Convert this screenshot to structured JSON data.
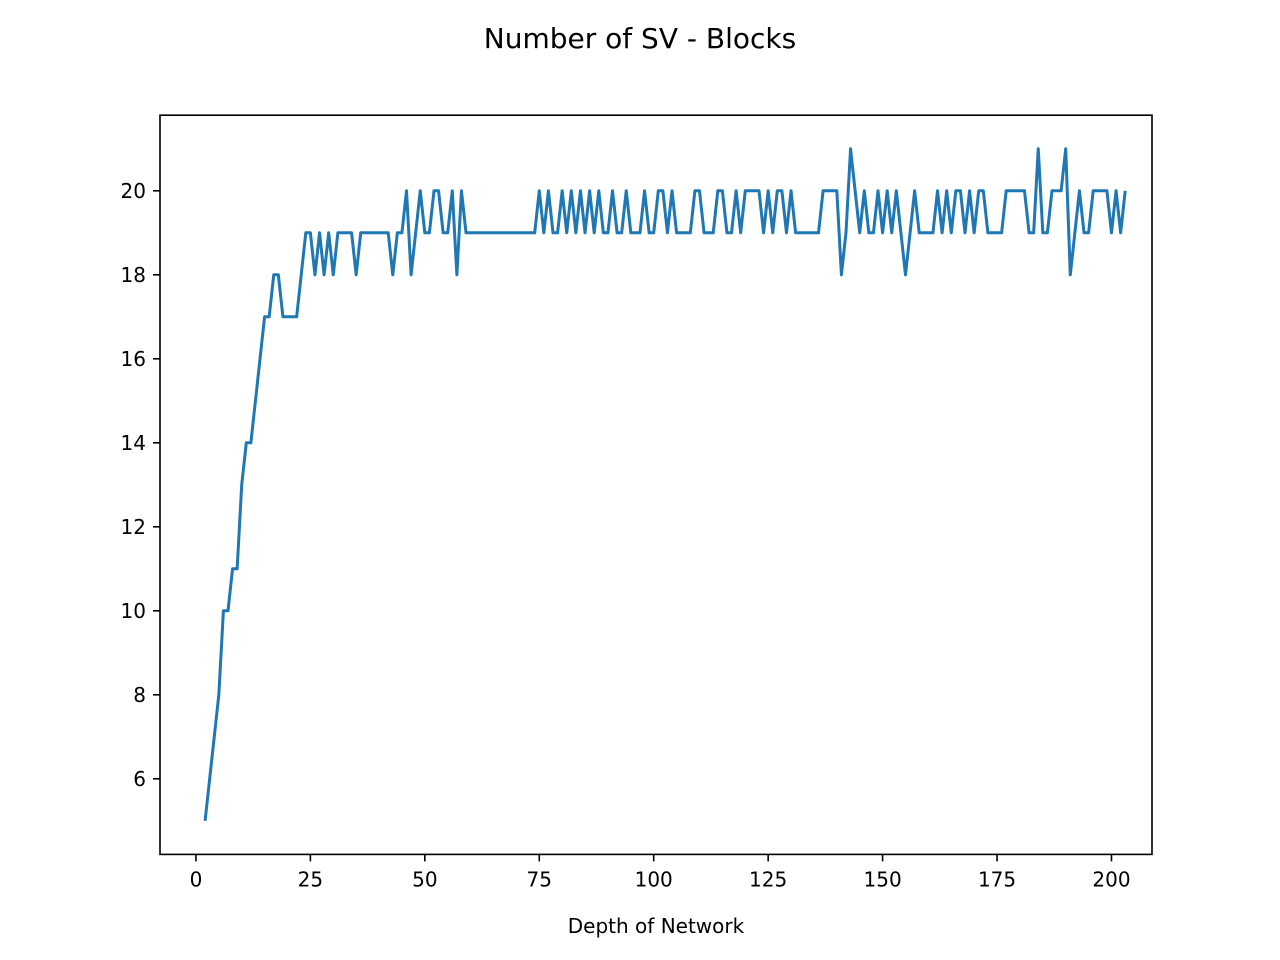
{
  "chart_data": {
    "type": "line",
    "title": "Number of SV - Blocks",
    "xlabel": "Depth of Network",
    "ylabel": "",
    "xlim": [
      -7.85,
      208.85
    ],
    "ylim": [
      4.2,
      21.8
    ],
    "xticks": [
      0,
      25,
      50,
      75,
      100,
      125,
      150,
      175,
      200
    ],
    "yticks": [
      6,
      8,
      10,
      12,
      14,
      16,
      18,
      20
    ],
    "grid": false,
    "line_color": "#1f77b4",
    "series": [
      {
        "x_start": 2,
        "x_step": 1,
        "values": [
          5,
          6,
          7,
          8,
          10,
          10,
          11,
          11,
          13,
          14,
          14,
          15,
          16,
          17,
          17,
          18,
          18,
          17,
          17,
          17,
          17,
          18,
          19,
          19,
          18,
          19,
          18,
          19,
          18,
          19,
          19,
          19,
          19,
          18,
          19,
          19,
          19,
          19,
          19,
          19,
          19,
          18,
          19,
          19,
          20,
          18,
          19,
          20,
          19,
          19,
          20,
          20,
          19,
          19,
          20,
          18,
          20,
          19,
          19,
          19,
          19,
          19,
          19,
          19,
          19,
          19,
          19,
          19,
          19,
          19,
          19,
          19,
          19,
          20,
          19,
          20,
          19,
          19,
          20,
          19,
          20,
          19,
          20,
          19,
          20,
          19,
          20,
          19,
          19,
          20,
          19,
          19,
          20,
          19,
          19,
          19,
          20,
          19,
          19,
          20,
          20,
          19,
          20,
          19,
          19,
          19,
          19,
          20,
          20,
          19,
          19,
          19,
          20,
          20,
          19,
          19,
          20,
          19,
          20,
          20,
          20,
          20,
          19,
          20,
          19,
          20,
          20,
          19,
          20,
          19,
          19,
          19,
          19,
          19,
          19,
          20,
          20,
          20,
          20,
          18,
          19,
          21,
          20,
          19,
          20,
          19,
          19,
          20,
          19,
          20,
          19,
          20,
          19,
          18,
          19,
          20,
          19,
          19,
          19,
          19,
          20,
          19,
          20,
          19,
          20,
          20,
          19,
          20,
          19,
          20,
          20,
          19,
          19,
          19,
          19,
          20,
          20,
          20,
          20,
          20,
          19,
          19,
          21,
          19,
          19,
          20,
          20,
          20,
          21,
          18,
          19,
          20,
          19,
          19,
          20,
          20,
          20,
          20,
          19,
          20,
          19,
          20
        ]
      }
    ]
  }
}
